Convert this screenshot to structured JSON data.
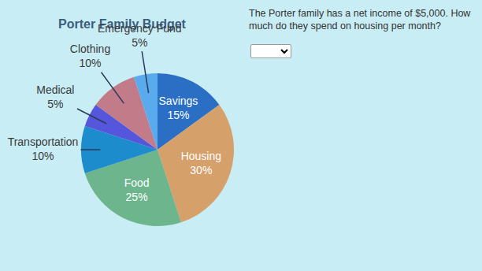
{
  "chart_data": {
    "type": "pie",
    "title": "Porter Family Budget",
    "categories": [
      "Savings",
      "Housing",
      "Food",
      "Transportation",
      "Medical",
      "Clothing",
      "Emergency Fund"
    ],
    "values": [
      15,
      30,
      25,
      10,
      5,
      10,
      5
    ],
    "value_labels": [
      "15%",
      "30%",
      "25%",
      "10%",
      "5%",
      "10%",
      "5%"
    ],
    "colors": [
      "#2a6fc4",
      "#d6a06a",
      "#6db58c",
      "#1c8ccc",
      "#5656dc",
      "#c27b88",
      "#5aabee"
    ],
    "data_labels": true
  },
  "question": [
    "The Porter family has a net income of $5,000. How",
    "much do they spend on housing per month?"
  ]
}
